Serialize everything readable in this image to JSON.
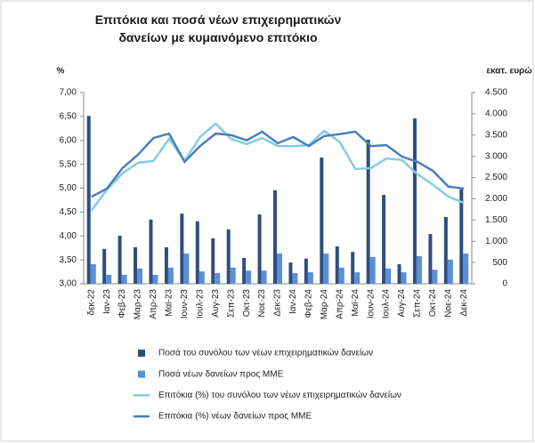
{
  "chart_data": {
    "type": "bar",
    "title": "Επιτόκια και ποσά νέων επιχειρηματικών δανείων με κυμαινόμενο επιτόκιο",
    "ylabel": "%",
    "y2label": "εκατ. ευρώ",
    "categories": [
      "δεκ-22",
      "Ιαν-23",
      "Φεβ-23",
      "Μαρ-23",
      "Απρ-23",
      "Μαϊ-23",
      "Ιουν-23",
      "Ιουλ-23",
      "Αυγ-23",
      "Σεπ-23",
      "Οκτ-23",
      "Νοε-23",
      "Δεκ-23",
      "Ιαν-24",
      "Φεβ-24",
      "Μαρ-24",
      "Απρ-24",
      "Μαϊ-24",
      "Ιουν-24",
      "Ιουλ-24",
      "Αυγ-24",
      "Σεπ-24",
      "Οκτ-24",
      "Νοε-24",
      "Δεκ-24"
    ],
    "ylim": [
      3,
      7
    ],
    "yticks": [
      {
        "value": 3,
        "label": "3,00"
      },
      {
        "value": 3.5,
        "label": "3,50"
      },
      {
        "value": 4,
        "label": "4,00"
      },
      {
        "value": 4.5,
        "label": "4,50"
      },
      {
        "value": 5,
        "label": "5,00"
      },
      {
        "value": 5.5,
        "label": "5,50"
      },
      {
        "value": 6,
        "label": "6,00"
      },
      {
        "value": 6.5,
        "label": "6,50"
      },
      {
        "value": 7,
        "label": "7,00"
      }
    ],
    "y2lim": [
      0,
      4500
    ],
    "y2ticks": [
      0,
      500,
      {
        "value": 1000,
        "label": "1.000"
      },
      {
        "value": 1500,
        "label": "1.500"
      },
      {
        "value": 2000,
        "label": "2.000"
      },
      {
        "value": 2500,
        "label": "2.500"
      },
      {
        "value": 3000,
        "label": "3.000"
      },
      {
        "value": 3500,
        "label": "3.500"
      },
      {
        "value": 4000,
        "label": "4.000"
      },
      {
        "value": 4500,
        "label": "4.500"
      }
    ],
    "series": [
      {
        "name": "Ποσά του συνόλου των νέων επιχειρηματικών δανείων",
        "type": "bar",
        "axis": "y2",
        "color": "#2f4e7e",
        "values": [
          3950,
          820,
          1130,
          860,
          1510,
          860,
          1650,
          1470,
          1070,
          1280,
          610,
          1630,
          2200,
          500,
          590,
          2970,
          880,
          750,
          3390,
          2090,
          460,
          3890,
          1170,
          1570,
          2220
        ]
      },
      {
        "name": "Ποσά νέων δανείων προς ΜΜΕ",
        "type": "bar",
        "axis": "y2",
        "color": "#5b8fd6",
        "values": [
          460,
          210,
          210,
          360,
          210,
          380,
          710,
          290,
          250,
          380,
          310,
          310,
          710,
          250,
          270,
          710,
          380,
          270,
          630,
          360,
          270,
          650,
          330,
          570,
          710
        ]
      },
      {
        "name": "Επιτόκια (%) του συνόλου των νέων επιχειρηματικών δανείων",
        "type": "line",
        "color": "#84cbe3",
        "values": [
          4.53,
          4.97,
          5.31,
          5.53,
          5.57,
          6.03,
          5.57,
          6.07,
          6.35,
          6.03,
          5.92,
          6.05,
          5.88,
          5.88,
          5.9,
          6.2,
          5.96,
          5.4,
          5.42,
          5.62,
          5.59,
          5.29,
          5.07,
          4.82,
          4.69
        ]
      },
      {
        "name": "Επιτόκια (%) νέων δανείων προς ΜΜΕ",
        "type": "line",
        "color": "#4a7ebb",
        "values": [
          4.82,
          4.99,
          5.42,
          5.7,
          6.05,
          6.14,
          5.55,
          5.88,
          6.14,
          6.11,
          6.0,
          6.18,
          5.94,
          6.07,
          5.88,
          6.09,
          6.13,
          6.18,
          5.88,
          5.9,
          5.66,
          5.55,
          5.36,
          5.03,
          4.99
        ]
      }
    ]
  }
}
